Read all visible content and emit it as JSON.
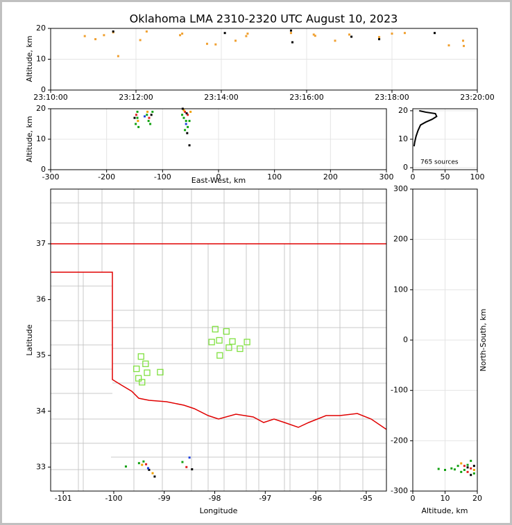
{
  "chart_data": [
    {
      "type": "scatter",
      "title": "Oklahoma LMA 2310-2320 UTC August 10, 2023",
      "ylabel": "Altitude, km",
      "grid": true,
      "xlim": [
        "23:10:00",
        "23:20:00"
      ],
      "xticks": [
        "23:10:00",
        "23:12:00",
        "23:14:00",
        "23:16:00",
        "23:18:00",
        "23:20:00"
      ],
      "ylim": [
        0,
        20
      ],
      "yticks": [
        0,
        10,
        20
      ],
      "series": [
        {
          "color": "#f0a030",
          "x": [
            "23:10:48",
            "23:11:03",
            "23:11:15",
            "23:11:28",
            "23:12:06",
            "23:12:15",
            "23:13:02",
            "23:13:05",
            "23:13:40",
            "23:13:52",
            "23:14:20",
            "23:14:35",
            "23:14:37",
            "23:15:38",
            "23:16:10",
            "23:16:12",
            "23:16:40",
            "23:17:00",
            "23:17:42",
            "23:18:00",
            "23:18:18",
            "23:19:20",
            "23:19:40",
            "23:19:41",
            "23:11:35"
          ],
          "values": [
            17.5,
            16.5,
            17.8,
            18.7,
            16.2,
            19.0,
            17.8,
            18.3,
            15.0,
            14.8,
            16.0,
            17.5,
            18.3,
            18.5,
            18.0,
            17.6,
            16.0,
            18.0,
            17.2,
            18.3,
            18.5,
            14.5,
            16.0,
            14.3,
            11.0
          ]
        },
        {
          "color": "#000000",
          "x": [
            "23:11:28",
            "23:14:05",
            "23:15:38",
            "23:15:40",
            "23:17:03",
            "23:17:42",
            "23:19:00"
          ],
          "values": [
            19.0,
            18.5,
            19.3,
            15.5,
            17.3,
            16.5,
            18.5
          ]
        }
      ]
    },
    {
      "type": "scatter",
      "xlabel": "East-West, km",
      "ylabel": "Altitude, km",
      "grid": true,
      "xlim": [
        -300,
        300
      ],
      "xticks": [
        -300,
        -200,
        -100,
        0,
        100,
        200,
        300
      ],
      "ylim": [
        0,
        20
      ],
      "yticks": [
        0,
        10,
        20
      ],
      "series": [
        {
          "color": "#10a010",
          "x": [
            -145,
            -148,
            -143,
            -125,
            -122,
            -128,
            -62,
            -58,
            -55,
            -65,
            -145,
            -118,
            -60,
            -52
          ],
          "values": [
            17,
            15,
            14,
            16,
            15,
            18,
            17,
            16,
            14,
            18,
            19,
            19,
            13,
            16
          ]
        },
        {
          "color": "#e02020",
          "x": [
            -147,
            -124,
            -60,
            -55
          ],
          "values": [
            18,
            17,
            19,
            18
          ]
        },
        {
          "color": "#f0a000",
          "x": [
            -144,
            -127,
            -62,
            -50
          ],
          "values": [
            16,
            19,
            19.5,
            19
          ]
        },
        {
          "color": "#000000",
          "x": [
            -150,
            -120,
            -57,
            -64,
            -56,
            -52
          ],
          "values": [
            17,
            18,
            18.5,
            20,
            12,
            8
          ]
        },
        {
          "color": "#2040e0",
          "x": [
            -58,
            -132
          ],
          "values": [
            15,
            17.5
          ]
        }
      ]
    },
    {
      "type": "line",
      "annotation": "765 sources",
      "grid": true,
      "xlim": [
        0,
        100
      ],
      "xticks": [
        0,
        50,
        100
      ],
      "ylim": [
        -0.7,
        20.7
      ],
      "yticks": [
        0,
        10,
        20
      ],
      "series": [
        {
          "color": "#000000",
          "x": [
            2,
            3,
            5,
            8,
            12,
            20,
            30,
            37,
            35,
            20,
            10
          ],
          "values": [
            7.5,
            9,
            11,
            13,
            15,
            16,
            17,
            18,
            19,
            19.5,
            20
          ]
        }
      ]
    },
    {
      "type": "scatter",
      "xlabel": "Longitude",
      "ylabel": "Latitude",
      "grid": false,
      "xlim": [
        -101.25,
        -94.6
      ],
      "xticks": [
        -101,
        -100,
        -99,
        -98,
        -97,
        -96,
        -95
      ],
      "ylim": [
        32.57,
        37.98
      ],
      "yticks": [
        33,
        34,
        35,
        36,
        37
      ],
      "series": [
        {
          "color": "#80e040",
          "marker": "square",
          "x": [
            -99.46,
            -97.99,
            -97.77,
            -97.91,
            -98.06,
            -97.65,
            -97.72,
            -97.5,
            -97.36,
            -97.9,
            -99.37,
            -99.55,
            -99.34,
            -99.08,
            -99.51,
            -99.44
          ],
          "values": [
            34.98,
            35.47,
            35.43,
            35.27,
            35.24,
            35.25,
            35.14,
            35.12,
            35.24,
            35.0,
            34.85,
            34.76,
            34.69,
            34.7,
            34.59,
            34.52
          ]
        },
        {
          "color": "#10a010",
          "x": [
            -99.5,
            -99.41,
            -98.64,
            -99.76
          ],
          "values": [
            33.07,
            33.1,
            33.09,
            33.01
          ]
        },
        {
          "color": "#e02020",
          "x": [
            -99.36,
            -98.56
          ],
          "values": [
            33.05,
            33.0
          ]
        },
        {
          "color": "#f0a000",
          "x": [
            -99.44,
            -99.23
          ],
          "values": [
            33.04,
            32.89
          ]
        },
        {
          "color": "#000000",
          "x": [
            -99.3,
            -99.19,
            -98.45
          ],
          "values": [
            32.95,
            32.83,
            32.96
          ]
        },
        {
          "color": "#2040e0",
          "x": [
            -98.5,
            -99.32
          ],
          "values": [
            33.17,
            32.98
          ]
        }
      ]
    },
    {
      "type": "scatter",
      "xlabel": "Altitude, km",
      "ylabel": "North-South, km",
      "grid": true,
      "xlim": [
        0,
        20
      ],
      "xticks": [
        0,
        10,
        20
      ],
      "ylim": [
        -300,
        300
      ],
      "yticks": [
        -300,
        -200,
        -100,
        0,
        100,
        200,
        300
      ],
      "series": [
        {
          "color": "#10a010",
          "x": [
            8,
            10,
            12,
            14,
            15,
            17,
            18,
            19,
            16,
            13
          ],
          "values": [
            -256,
            -258,
            -255,
            -250,
            -262,
            -248,
            -240,
            -265,
            -258,
            -257
          ]
        },
        {
          "color": "#e02020",
          "x": [
            16,
            18,
            17
          ],
          "values": [
            -250,
            -255,
            -262
          ]
        },
        {
          "color": "#f0a000",
          "x": [
            15,
            19
          ],
          "values": [
            -245,
            -258
          ]
        },
        {
          "color": "#000000",
          "x": [
            17,
            19,
            18
          ],
          "values": [
            -253,
            -250,
            -268
          ]
        }
      ]
    }
  ]
}
